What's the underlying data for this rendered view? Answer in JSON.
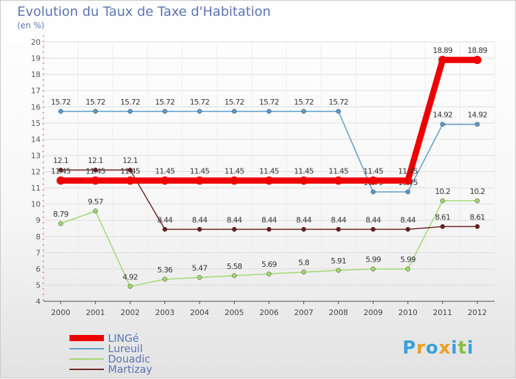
{
  "chart_data": {
    "type": "line",
    "title": "Evolution du Taux de Taxe d'Habitation",
    "ylabel": "(en %)",
    "xlabel": "",
    "ylim": [
      4,
      20
    ],
    "yticks": [
      "4",
      "5",
      "6",
      "7",
      "8",
      "9",
      "10",
      "11",
      "12",
      "13",
      "14",
      "15",
      "16",
      "17",
      "18",
      "19",
      "20"
    ],
    "x": [
      "2000",
      "2001",
      "2002",
      "2003",
      "2004",
      "2005",
      "2006",
      "2007",
      "2008",
      "2009",
      "2010",
      "2011",
      "2012"
    ],
    "series": [
      {
        "name": "Lureuil",
        "color": "#5b9bc9",
        "values": [
          15.72,
          15.72,
          15.72,
          15.72,
          15.72,
          15.72,
          15.72,
          15.72,
          15.72,
          10.75,
          10.75,
          14.92,
          14.92
        ],
        "labels": [
          "15.72",
          "15.72",
          "15.72",
          "15.72",
          "15.72",
          "15.72",
          "15.72",
          "15.72",
          "15.72",
          "10.75",
          "10.75",
          "14.92",
          "14.92"
        ]
      },
      {
        "name": "Douadic",
        "color": "#9fd86f",
        "values": [
          8.79,
          9.57,
          4.92,
          5.36,
          5.47,
          5.58,
          5.69,
          5.8,
          5.91,
          5.99,
          5.99,
          10.2,
          10.2
        ],
        "labels": [
          "8.79",
          "9.57",
          "4.92",
          "5.36",
          "5.47",
          "5.58",
          "5.69",
          "5.8",
          "5.91",
          "5.99",
          "5.99",
          "10.2",
          "10.2"
        ]
      },
      {
        "name": "Martizay",
        "color": "#6b1f1f",
        "values": [
          12.1,
          12.1,
          12.1,
          8.44,
          8.44,
          8.44,
          8.44,
          8.44,
          8.44,
          8.44,
          8.44,
          8.61,
          8.61
        ],
        "labels": [
          "12.1",
          "12.1",
          "12.1",
          "8.44",
          "8.44",
          "8.44",
          "8.44",
          "8.44",
          "8.44",
          "8.44",
          "8.44",
          "8.61",
          "8.61"
        ]
      },
      {
        "name": "LINGé",
        "color": "#ee0000",
        "values": [
          11.45,
          11.45,
          11.45,
          11.45,
          11.45,
          11.45,
          11.45,
          11.45,
          11.45,
          11.45,
          11.45,
          18.89,
          18.89
        ],
        "labels": [
          "11.45",
          "11.45",
          "11.45",
          "11.45",
          "11.45",
          "11.45",
          "11.45",
          "11.45",
          "11.45",
          "11.45",
          "11.45",
          "18.89",
          "18.89"
        ]
      }
    ],
    "legend": [
      "LINGé",
      "Lureuil",
      "Douadic",
      "Martizay"
    ],
    "legend_position": "bottom-left",
    "grid": "horizontal"
  },
  "header": {
    "title": "Evolution du Taux de Taxe d'Habitation",
    "unit": "(en %)"
  },
  "legend": {
    "items": [
      {
        "label": "LINGé",
        "color": "#ee0000"
      },
      {
        "label": "Lureuil",
        "color": "#5b9bc9"
      },
      {
        "label": "Douadic",
        "color": "#9fd86f"
      },
      {
        "label": "Martizay",
        "color": "#6b1f1f"
      }
    ]
  },
  "logo": {
    "text": "Proxiti",
    "letters": [
      "P",
      "r",
      "o",
      "x",
      "i",
      "t",
      "i"
    ],
    "colors": [
      "#3aa0d8",
      "#e8a020",
      "#3aa0d8",
      "#e8a020",
      "#3aa0d8",
      "#88c040",
      "#3aa0d8"
    ]
  }
}
